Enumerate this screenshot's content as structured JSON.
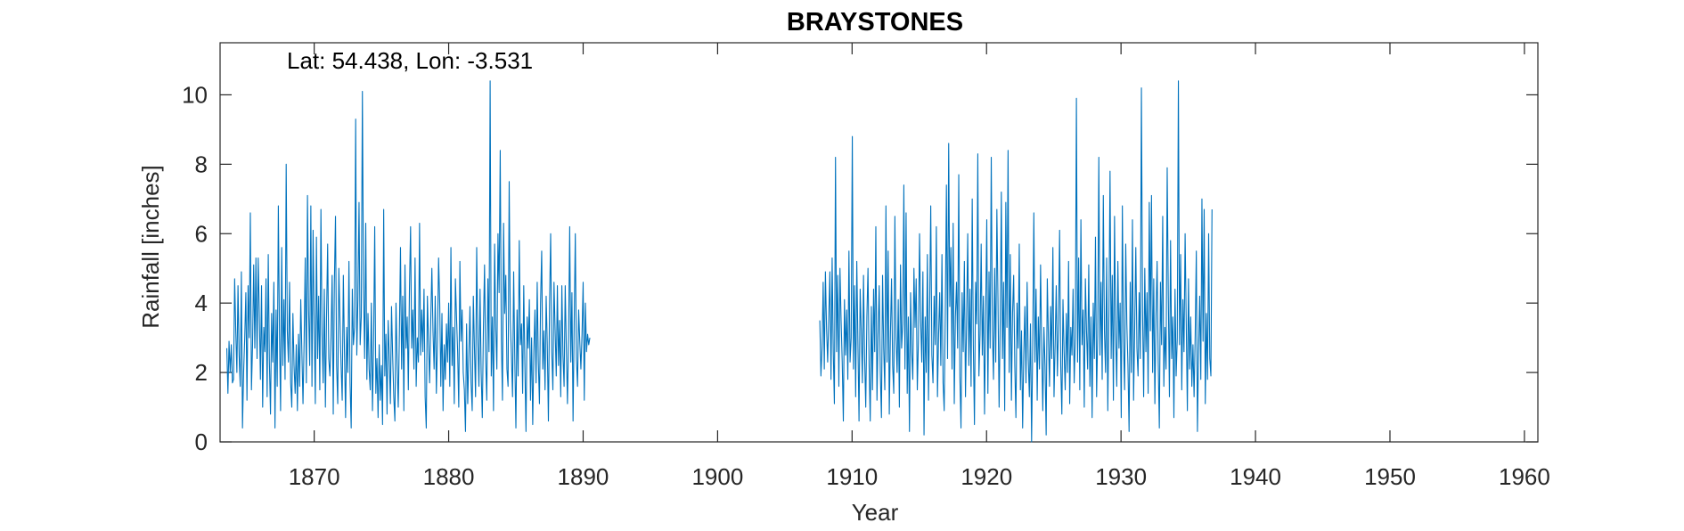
{
  "chart_data": {
    "type": "line",
    "title": "BRAYSTONES",
    "annotation": "Lat: 54.438, Lon: -3.531",
    "xlabel": "Year",
    "ylabel": "Rainfall [inches]",
    "xlim": [
      1863,
      1961
    ],
    "ylim": [
      0,
      11.5
    ],
    "xticks": [
      1870,
      1880,
      1890,
      1900,
      1910,
      1920,
      1930,
      1940,
      1950,
      1960
    ],
    "yticks": [
      0,
      2,
      4,
      6,
      8,
      10
    ],
    "grid": false,
    "series_color": "#0072BD",
    "series": [
      {
        "note_resolution": "monthly rainfall values, approximated",
        "segments": [
          {
            "start": 1863.5,
            "step": 0.0833333,
            "values": [
              2.7,
              1.4,
              2.9,
              2.0,
              2.8,
              1.7,
              1.8,
              4.7,
              3.2,
              2.0,
              4.5,
              2.5,
              1.6,
              4.9,
              0.4,
              2.0,
              3.0,
              4.3,
              1.2,
              4.5,
              3.0,
              6.6,
              1.5,
              2.8,
              5.1,
              2.7,
              5.3,
              2.4,
              5.3,
              3.7,
              1.8,
              4.5,
              1.0,
              3.3,
              2.6,
              4.7,
              1.3,
              5.4,
              2.3,
              0.8,
              3.7,
              2.3,
              4.6,
              0.4,
              3.8,
              1.6,
              6.8,
              3.1,
              0.9,
              5.6,
              2.2,
              4.1,
              1.8,
              8.0,
              3.2,
              2.3,
              4.6,
              1.7,
              1.0,
              3.7,
              2.2,
              1.4,
              2.8,
              0.9,
              3.1,
              1.6,
              4.1,
              2.6,
              1.1,
              2.9,
              5.3,
              1.7,
              7.1,
              3.8,
              2.2,
              6.8,
              1.6,
              6.1,
              3.4,
              1.1,
              5.9,
              2.4,
              4.2,
              1.5,
              6.7,
              3.1,
              1.7,
              4.4,
              1.0,
              3.6,
              5.7,
              2.4,
              1.9,
              3.0,
              4.8,
              0.8,
              4.6,
              6.5,
              2.2,
              1.1,
              5.0,
              3.5,
              2.2,
              1.2,
              4.8,
              2.6,
              0.7,
              3.3,
              2.0,
              5.2,
              1.7,
              0.4,
              4.4,
              2.8,
              3.3,
              9.3,
              2.5,
              4.1,
              6.9,
              2.8,
              3.6,
              10.1,
              4.5,
              2.4,
              6.3,
              1.8,
              3.7,
              2.1,
              1.5,
              4.0,
              0.9,
              2.8,
              6.2,
              1.4,
              2.4,
              0.7,
              2.8,
              1.2,
              2.2,
              0.5,
              6.7,
              1.9,
              3.1,
              0.8,
              3.5,
              2.4,
              1.1,
              3.9,
              2.5,
              1.3,
              0.6,
              4.0,
              2.3,
              1.0,
              3.1,
              5.6,
              2.1,
              4.2,
              0.9,
              5.1,
              2.7,
              3.6,
              1.5,
              4.4,
              6.2,
              2.7,
              3.8,
              2.1,
              5.3,
              1.6,
              3.0,
              2.3,
              6.3,
              2.5,
              3.8,
              2.6,
              4.4,
              1.3,
              0.4,
              4.2,
              2.9,
              1.7,
              3.5,
              5.0,
              3.2,
              2.1,
              4.2,
              1.4,
              2.9,
              5.3,
              4.0,
              1.6,
              3.7,
              0.9,
              2.8,
              1.8,
              3.4,
              2.3,
              4.0,
              1.6,
              5.6,
              2.2,
              3.3,
              1.1,
              4.7,
              3.6,
              2.6,
              1.0,
              5.2,
              2.9,
              3.8,
              2.0,
              1.5,
              0.3,
              3.4,
              1.1,
              2.5,
              3.9,
              1.7,
              0.9,
              4.2,
              2.7,
              1.3,
              5.6,
              3.0,
              1.6,
              4.4,
              2.0,
              0.7,
              3.3,
              5.1,
              2.4,
              1.2,
              4.7,
              2.6,
              10.4,
              1.9,
              3.6,
              0.9,
              5.7,
              3.3,
              2.1,
              6.0,
              4.3,
              8.4,
              3.0,
              1.2,
              6.3,
              3.7,
              4.8,
              2.1,
              1.6,
              7.5,
              3.5,
              2.5,
              1.3,
              4.9,
              2.4,
              0.4,
              3.8,
              1.9,
              5.8,
              2.8,
              3.4,
              1.4,
              4.5,
              2.2,
              0.3,
              3.6,
              2.7,
              4.1,
              1.2,
              3.0,
              0.5,
              2.6,
              3.8,
              1.7,
              4.6,
              2.3,
              1.1,
              4.0,
              5.5,
              2.1,
              3.2,
              1.5,
              4.2,
              2.8,
              0.6,
              3.9,
              6.0,
              2.6,
              1.5,
              4.6,
              3.2,
              1.9,
              4.5,
              2.2,
              3.5,
              1.3,
              4.5,
              2.5,
              1.6,
              4.5,
              2.7,
              1.1,
              3.0,
              6.2,
              2.3,
              4.3,
              0.6,
              3.4,
              6.0,
              2.4,
              1.6,
              3.8,
              2.9,
              2.1,
              3.1,
              4.6,
              1.2,
              4.0,
              2.6,
              3.1,
              2.8,
              3.0
            ]
          },
          {
            "start": 1907.6,
            "step": 0.0833333,
            "values": [
              3.5,
              1.9,
              2.7,
              4.6,
              2.1,
              4.9,
              3.3,
              2.3,
              3.6,
              4.9,
              1.8,
              5.3,
              2.6,
              1.1,
              8.2,
              2.6,
              4.8,
              1.6,
              5.0,
              3.5,
              2.3,
              0.6,
              4.1,
              2.5,
              3.8,
              1.8,
              5.5,
              2.3,
              3.0,
              8.8,
              2.1,
              4.5,
              1.3,
              5.2,
              2.9,
              0.6,
              4.4,
              3.2,
              1.7,
              4.8,
              2.4,
              1.0,
              3.6,
              5.0,
              2.2,
              0.6,
              3.9,
              1.5,
              4.4,
              2.6,
              6.2,
              1.2,
              3.1,
              4.5,
              2.0,
              0.7,
              4.8,
              2.7,
              1.5,
              6.8,
              2.3,
              5.5,
              0.8,
              3.1,
              4.7,
              2.2,
              1.4,
              6.5,
              3.0,
              2.0,
              4.1,
              1.0,
              5.1,
              2.7,
              3.4,
              7.4,
              2.1,
              6.6,
              1.4,
              3.6,
              0.3,
              4.3,
              2.6,
              1.8,
              5.0,
              3.3,
              4.7,
              1.5,
              2.9,
              6.0,
              3.5,
              2.3,
              4.9,
              0.2,
              3.6,
              2.0,
              5.4,
              1.2,
              3.8,
              6.8,
              2.5,
              1.7,
              4.2,
              2.8,
              6.2,
              1.3,
              3.1,
              4.3,
              2.2,
              5.4,
              1.7,
              0.9,
              3.8,
              7.4,
              2.4,
              8.6,
              3.9,
              5.6,
              2.1,
              6.3,
              1.1,
              3.6,
              4.6,
              2.7,
              7.7,
              1.9,
              0.4,
              4.3,
              2.6,
              5.2,
              1.3,
              3.5,
              6.0,
              2.2,
              4.4,
              1.6,
              7.0,
              2.8,
              0.5,
              4.6,
              3.4,
              8.3,
              1.9,
              3.1,
              5.7,
              2.5,
              4.2,
              0.8,
              3.7,
              6.4,
              1.4,
              4.9,
              2.7,
              8.2,
              3.2,
              1.8,
              5.0,
              2.3,
              6.7,
              4.1,
              1.0,
              3.5,
              7.2,
              2.4,
              4.6,
              0.9,
              6.9,
              3.3,
              8.4,
              2.0,
              5.4,
              1.2,
              3.7,
              4.8,
              2.2,
              0.7,
              4.0,
              2.7,
              5.7,
              1.5,
              3.2,
              0.4,
              2.5,
              3.9,
              1.7,
              4.6,
              2.4,
              1.3,
              3.4,
              0.0,
              2.8,
              6.6,
              2.3,
              4.4,
              1.2,
              3.6,
              2.1,
              5.1,
              2.7,
              0.9,
              3.3,
              2.2,
              0.2,
              4.7,
              3.0,
              1.6,
              3.9,
              2.4,
              5.6,
              1.3,
              2.8,
              4.5,
              1.9,
              3.4,
              6.1,
              2.2,
              0.8,
              4.1,
              2.6,
              1.5,
              3.7,
              2.0,
              5.2,
              1.1,
              3.3,
              2.5,
              4.4,
              1.7,
              3.0,
              9.9,
              2.3,
              5.3,
              1.5,
              6.4,
              2.8,
              3.8,
              1.0,
              4.7,
              3.2,
              2.1,
              5.1,
              1.6,
              3.6,
              0.7,
              4.0,
              2.4,
              5.9,
              1.3,
              3.1,
              8.2,
              2.5,
              4.6,
              1.8,
              7.1,
              3.2,
              2.0,
              5.3,
              0.9,
              3.7,
              7.8,
              2.4,
              4.8,
              1.2,
              6.5,
              3.1,
              1.6,
              5.2,
              2.7,
              4.0,
              0.7,
              6.8,
              2.9,
              1.5,
              5.7,
              3.4,
              2.2,
              0.3,
              4.6,
              2.0,
              6.4,
              1.2,
              3.3,
              5.6,
              2.7,
              1.9,
              4.3,
              2.4,
              10.2,
              3.8,
              1.3,
              5.0,
              2.6,
              4.3,
              1.4,
              6.9,
              3.2,
              7.1,
              2.0,
              4.7,
              1.1,
              3.6,
              5.2,
              2.3,
              0.4,
              4.6,
              2.8,
              6.5,
              1.6,
              3.3,
              2.1,
              7.9,
              4.2,
              1.3,
              5.8,
              2.4,
              3.6,
              0.7,
              4.4,
              1.9,
              3.0,
              10.4,
              2.8,
              5.4,
              1.5,
              4.1,
              2.6,
              6.0,
              3.4,
              0.9,
              4.7,
              2.1,
              3.6,
              1.6,
              2.8,
              1.3,
              3.1,
              5.5,
              0.3,
              2.6,
              4.2,
              1.8,
              7.0,
              2.9,
              6.7,
              1.1,
              3.7,
              1.8,
              6.0,
              2.4,
              1.9,
              6.7
            ]
          }
        ]
      }
    ]
  }
}
